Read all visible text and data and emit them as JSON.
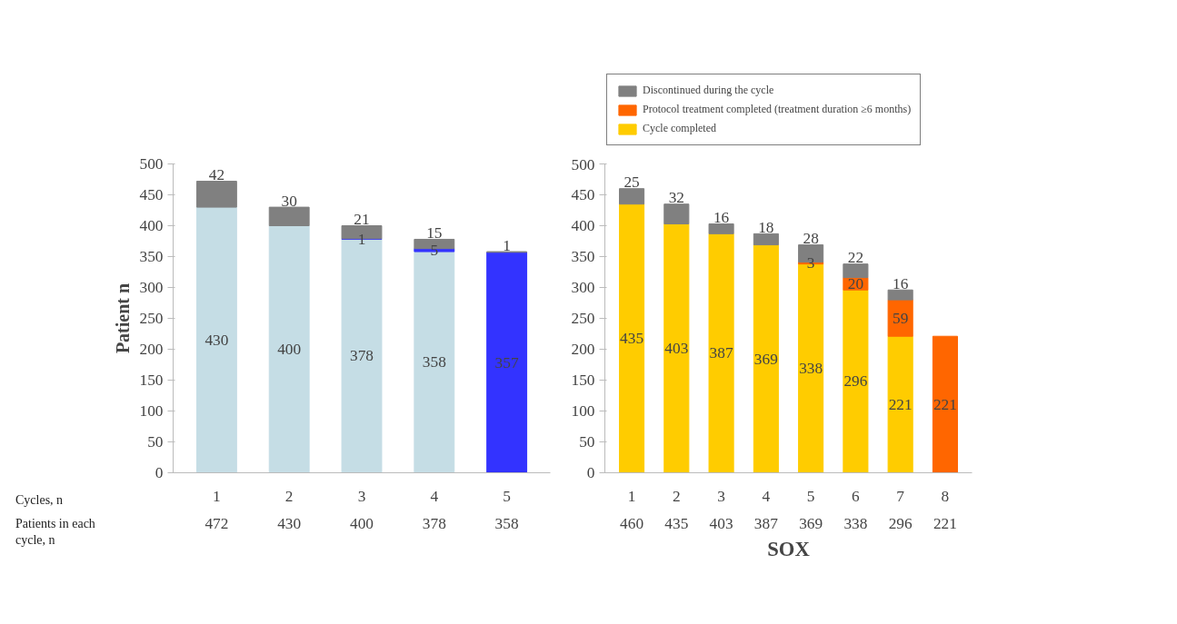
{
  "chart_data": [
    {
      "type": "bar",
      "stacked": true,
      "ylabel": "Patient n",
      "xlabel": "Cycles, n",
      "annotations": [
        "Patients in each cycle, n"
      ],
      "categories": [
        "1",
        "2",
        "3",
        "4",
        "5"
      ],
      "series": [
        {
          "color": "#c5dde5",
          "values": [
            430,
            400,
            378,
            358,
            null
          ]
        },
        {
          "color": "#3333ff",
          "values": [
            null,
            null,
            1,
            5,
            357
          ]
        },
        {
          "color": "#808080",
          "values": [
            42,
            30,
            21,
            15,
            1
          ]
        }
      ],
      "totals": [
        "472",
        "430",
        "400",
        "378",
        "358"
      ],
      "data_labels": true,
      "ylim": [
        0,
        500
      ],
      "yticks": [
        0,
        50,
        100,
        150,
        200,
        250,
        300,
        350,
        400,
        450,
        500
      ],
      "grid": false
    },
    {
      "type": "bar",
      "stacked": true,
      "title": "SOX",
      "categories": [
        "1",
        "2",
        "3",
        "4",
        "5",
        "6",
        "7",
        "8"
      ],
      "series": [
        {
          "name": "Cycle completed",
          "color": "#ffcc00",
          "values": [
            435,
            403,
            387,
            369,
            338,
            296,
            221,
            null
          ]
        },
        {
          "name": "Protocol treatment completed (treatment duration ≥6 months)",
          "color": "#ff6600",
          "values": [
            null,
            null,
            null,
            null,
            3,
            20,
            59,
            221
          ]
        },
        {
          "name": "Discontinued during the cycle",
          "color": "#808080",
          "values": [
            25,
            32,
            16,
            18,
            28,
            22,
            16,
            null
          ]
        }
      ],
      "totals": [
        "460",
        "435",
        "403",
        "387",
        "369",
        "338",
        "296",
        "221"
      ],
      "data_labels": true,
      "ylim": [
        0,
        500
      ],
      "yticks": [
        0,
        50,
        100,
        150,
        200,
        250,
        300,
        350,
        400,
        450,
        500
      ],
      "grid": false,
      "legend": "top"
    }
  ]
}
